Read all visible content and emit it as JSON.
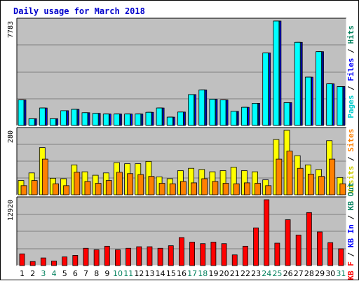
{
  "chart_data": [
    {
      "type": "bar",
      "title": "Daily usage for March 2018",
      "ytick": "7783",
      "legend": [
        "Pages",
        "Files",
        "Hits"
      ],
      "legend_placement": "right",
      "grid": true,
      "categories": [
        "1",
        "2",
        "3",
        "4",
        "5",
        "6",
        "7",
        "8",
        "9",
        "10",
        "11",
        "12",
        "13",
        "14",
        "15",
        "16",
        "17",
        "18",
        "19",
        "20",
        "21",
        "22",
        "23",
        "24",
        "25",
        "26",
        "27",
        "28",
        "29",
        "30",
        "31"
      ],
      "series": [
        {
          "name": "Pages",
          "color": "#00ffff",
          "values": [
            1900,
            500,
            1300,
            500,
            1100,
            1200,
            950,
            900,
            850,
            850,
            850,
            850,
            980,
            1300,
            620,
            1000,
            2300,
            2650,
            1950,
            1900,
            1050,
            1350,
            1650,
            5400,
            7783,
            1700,
            6200,
            3600,
            5500,
            3100,
            2900
          ]
        },
        {
          "name": "Files",
          "color": "#00ccff",
          "values": [
            1900,
            500,
            1300,
            500,
            1100,
            1200,
            950,
            900,
            850,
            850,
            850,
            850,
            980,
            1300,
            620,
            1000,
            2300,
            2650,
            1950,
            1900,
            1050,
            1350,
            1650,
            5400,
            7783,
            1700,
            6200,
            3600,
            5500,
            3100,
            2900
          ]
        },
        {
          "name": "Hits",
          "color": "#0000ff",
          "values": [
            1900,
            500,
            1300,
            500,
            1100,
            1200,
            950,
            900,
            850,
            850,
            850,
            850,
            980,
            1300,
            620,
            1000,
            2300,
            2650,
            1950,
            1900,
            1050,
            1350,
            1650,
            5400,
            7783,
            1700,
            6200,
            3600,
            5500,
            3100,
            2900
          ]
        }
      ]
    },
    {
      "type": "bar",
      "ytick": "280",
      "legend": [
        "Visits",
        "Sites"
      ],
      "legend_placement": "right",
      "grid": true,
      "categories": [
        "1",
        "2",
        "3",
        "4",
        "5",
        "6",
        "7",
        "8",
        "9",
        "10",
        "11",
        "12",
        "13",
        "14",
        "15",
        "16",
        "17",
        "18",
        "19",
        "20",
        "21",
        "22",
        "23",
        "24",
        "25",
        "26",
        "27",
        "28",
        "29",
        "30",
        "31"
      ],
      "series": [
        {
          "name": "Visits",
          "color": "#ffff00",
          "values": [
            62,
            95,
            205,
            72,
            70,
            130,
            100,
            85,
            95,
            140,
            135,
            135,
            145,
            78,
            70,
            105,
            115,
            110,
            100,
            105,
            120,
            105,
            100,
            65,
            240,
            280,
            170,
            130,
            110,
            235,
            75
          ]
        },
        {
          "name": "Sites",
          "color": "#ff8000",
          "values": [
            40,
            62,
            155,
            48,
            40,
            98,
            58,
            50,
            62,
            98,
            92,
            88,
            80,
            50,
            48,
            58,
            52,
            70,
            58,
            50,
            48,
            52,
            50,
            40,
            155,
            190,
            115,
            90,
            80,
            155,
            48
          ]
        }
      ]
    },
    {
      "type": "bar",
      "ytick": "12920",
      "legend": [
        "KB F",
        "KB In",
        "KB Out"
      ],
      "legend_placement": "right",
      "grid": true,
      "categories": [
        "1",
        "2",
        "3",
        "4",
        "5",
        "6",
        "7",
        "8",
        "9",
        "10",
        "11",
        "12",
        "13",
        "14",
        "15",
        "16",
        "17",
        "18",
        "19",
        "20",
        "21",
        "22",
        "23",
        "24",
        "25",
        "26",
        "27",
        "28",
        "29",
        "30",
        "31"
      ],
      "series": [
        {
          "name": "KB F",
          "color": "#ff0000",
          "values": [
            2300,
            800,
            1500,
            900,
            1700,
            2000,
            3400,
            3100,
            3800,
            3100,
            3400,
            3700,
            3700,
            3400,
            3900,
            5500,
            4600,
            4300,
            4600,
            4300,
            2100,
            3800,
            7400,
            12920,
            4400,
            9000,
            6000,
            10400,
            6600,
            4500,
            3300
          ]
        }
      ]
    }
  ],
  "x_labels": {
    "days": [
      "1",
      "2",
      "3",
      "4",
      "5",
      "6",
      "7",
      "8",
      "9",
      "10",
      "11",
      "12",
      "13",
      "14",
      "15",
      "16",
      "17",
      "18",
      "19",
      "20",
      "21",
      "22",
      "23",
      "24",
      "25",
      "26",
      "27",
      "28",
      "29",
      "30",
      "31"
    ],
    "weekend_days": [
      3,
      4,
      10,
      11,
      17,
      18,
      24,
      25,
      31
    ],
    "weekday_color": "#000000",
    "weekend_color": "#00805c"
  },
  "legend_colors": {
    "Pages": "#00cccc",
    "Files": "#0000ff",
    "Hits": "#00805c",
    "Visits": "#cccc00",
    "Sites": "#ff8000",
    "KB F": "#ff0000",
    "KB In": "#0000ff",
    "KB Out": "#00805c",
    "sep": "#000000"
  },
  "colors": {
    "plot_bg": "#c0c0c0",
    "grid": "#808080",
    "frame_dark": "#000000",
    "frame_light": "#ffffff",
    "title": "#0000cc",
    "outline": "#000000"
  }
}
